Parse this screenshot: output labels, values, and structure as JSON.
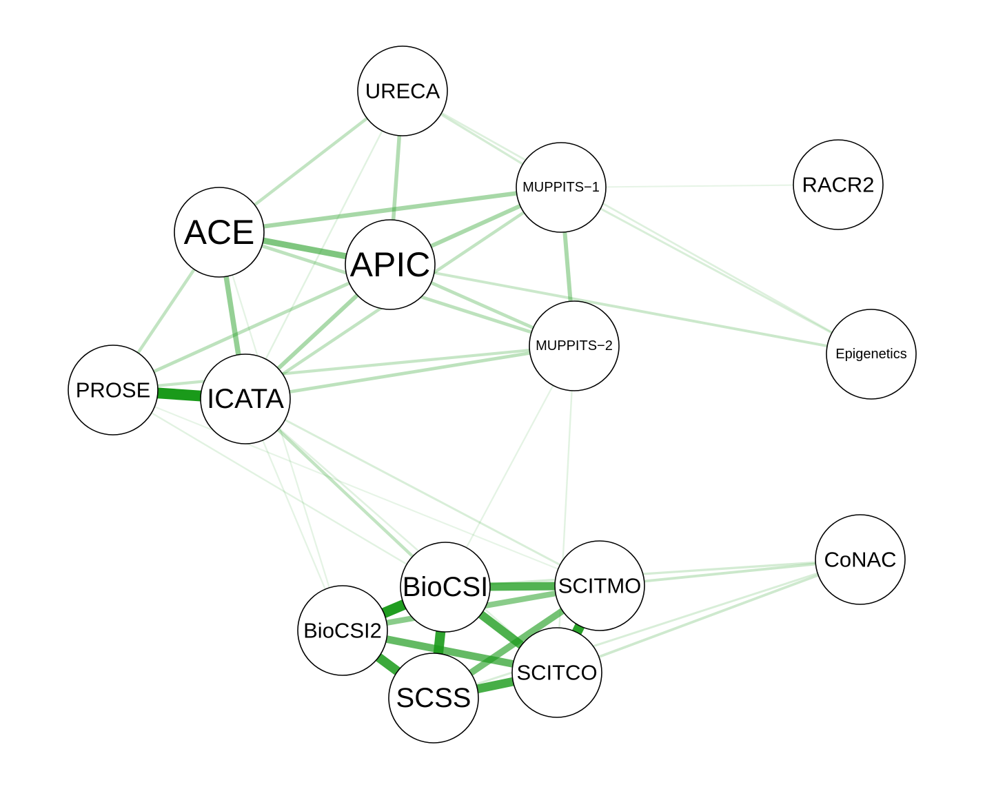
{
  "chart_data": {
    "type": "network",
    "edge_color": "#1a9a1a",
    "nodes": [
      {
        "id": "URECA",
        "label": "URECA",
        "size": "small"
      },
      {
        "id": "MUPPITS-1",
        "label": "MUPPITS−1",
        "size": "tiny"
      },
      {
        "id": "RACR2",
        "label": "RACR2",
        "size": "small"
      },
      {
        "id": "ACE",
        "label": "ACE",
        "size": "large"
      },
      {
        "id": "APIC",
        "label": "APIC",
        "size": "large"
      },
      {
        "id": "MUPPITS-2",
        "label": "MUPPITS−2",
        "size": "tiny"
      },
      {
        "id": "Epigenetics",
        "label": "Epigenetics",
        "size": "tiny"
      },
      {
        "id": "PROSE",
        "label": "PROSE",
        "size": "small"
      },
      {
        "id": "ICATA",
        "label": "ICATA",
        "size": "medium"
      },
      {
        "id": "CoNAC",
        "label": "CoNAC",
        "size": "small"
      },
      {
        "id": "BioCSI",
        "label": "BioCSI",
        "size": "medium"
      },
      {
        "id": "SCITMO",
        "label": "SCITMO",
        "size": "small"
      },
      {
        "id": "BioCSI2",
        "label": "BioCSI2",
        "size": "small"
      },
      {
        "id": "SCITCO",
        "label": "SCITCO",
        "size": "small"
      },
      {
        "id": "SCSS",
        "label": "SCSS",
        "size": "medium"
      }
    ],
    "edges": [
      {
        "source": "PROSE",
        "target": "ICATA",
        "weight": 0.95
      },
      {
        "source": "BioCSI",
        "target": "BioCSI2",
        "weight": 0.92
      },
      {
        "source": "SCITMO",
        "target": "SCITCO",
        "weight": 0.88
      },
      {
        "source": "BioCSI",
        "target": "SCSS",
        "weight": 0.85
      },
      {
        "source": "BioCSI2",
        "target": "SCSS",
        "weight": 0.8
      },
      {
        "source": "SCSS",
        "target": "SCITCO",
        "weight": 0.75
      },
      {
        "source": "BioCSI",
        "target": "SCITCO",
        "weight": 0.72
      },
      {
        "source": "BioCSI",
        "target": "SCITMO",
        "weight": 0.7
      },
      {
        "source": "BioCSI2",
        "target": "SCITCO",
        "weight": 0.62
      },
      {
        "source": "SCSS",
        "target": "SCITMO",
        "weight": 0.55
      },
      {
        "source": "BioCSI2",
        "target": "SCITMO",
        "weight": 0.45
      },
      {
        "source": "ACE",
        "target": "APIC",
        "weight": 0.5
      },
      {
        "source": "ACE",
        "target": "ICATA",
        "weight": 0.4
      },
      {
        "source": "ACE",
        "target": "MUPPITS-1",
        "weight": 0.32
      },
      {
        "source": "APIC",
        "target": "MUPPITS-1",
        "weight": 0.3
      },
      {
        "source": "MUPPITS-1",
        "target": "MUPPITS-2",
        "weight": 0.3
      },
      {
        "source": "APIC",
        "target": "ICATA",
        "weight": 0.3
      },
      {
        "source": "URECA",
        "target": "APIC",
        "weight": 0.27
      },
      {
        "source": "PROSE",
        "target": "APIC",
        "weight": 0.22
      },
      {
        "source": "ACE",
        "target": "MUPPITS-2",
        "weight": 0.22
      },
      {
        "source": "APIC",
        "target": "MUPPITS-2",
        "weight": 0.22
      },
      {
        "source": "ICATA",
        "target": "MUPPITS-2",
        "weight": 0.22
      },
      {
        "source": "ACE",
        "target": "PROSE",
        "weight": 0.2
      },
      {
        "source": "URECA",
        "target": "ACE",
        "weight": 0.2
      },
      {
        "source": "ICATA",
        "target": "MUPPITS-1",
        "weight": 0.2
      },
      {
        "source": "ICATA",
        "target": "BioCSI",
        "weight": 0.2
      },
      {
        "source": "PROSE",
        "target": "MUPPITS-2",
        "weight": 0.18
      },
      {
        "source": "APIC",
        "target": "Epigenetics",
        "weight": 0.16
      },
      {
        "source": "SCITMO",
        "target": "CoNAC",
        "weight": 0.16
      },
      {
        "source": "SCITCO",
        "target": "CoNAC",
        "weight": 0.15
      },
      {
        "source": "URECA",
        "target": "MUPPITS-1",
        "weight": 0.12
      },
      {
        "source": "BioCSI",
        "target": "CoNAC",
        "weight": 0.12
      },
      {
        "source": "SCSS",
        "target": "CoNAC",
        "weight": 0.1
      },
      {
        "source": "ICATA",
        "target": "SCITMO",
        "weight": 0.1
      },
      {
        "source": "MUPPITS-1",
        "target": "Epigenetics",
        "weight": 0.1
      },
      {
        "source": "URECA",
        "target": "Epigenetics",
        "weight": 0.08
      },
      {
        "source": "ICATA",
        "target": "URECA",
        "weight": 0.06
      },
      {
        "source": "PROSE",
        "target": "BioCSI",
        "weight": 0.06
      },
      {
        "source": "ICATA",
        "target": "SCITCO",
        "weight": 0.07
      },
      {
        "source": "MUPPITS-2",
        "target": "SCITCO",
        "weight": 0.06
      },
      {
        "source": "MUPPITS-2",
        "target": "BioCSI",
        "weight": 0.05
      },
      {
        "source": "ACE",
        "target": "BioCSI2",
        "weight": 0.05
      },
      {
        "source": "PROSE",
        "target": "SCITMO",
        "weight": 0.04
      },
      {
        "source": "ICATA",
        "target": "BioCSI2",
        "weight": 0.05
      },
      {
        "source": "MUPPITS-1",
        "target": "RACR2",
        "weight": 0.04
      }
    ]
  }
}
